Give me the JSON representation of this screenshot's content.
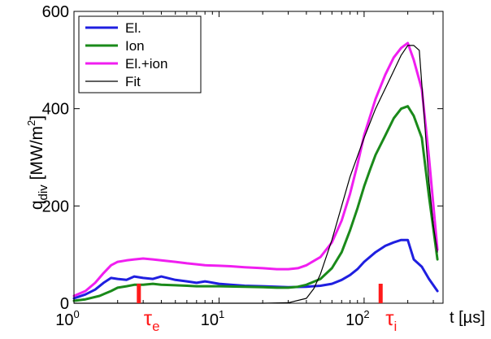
{
  "chart_data": {
    "type": "line",
    "xscale": "log",
    "xlim": [
      1,
      350
    ],
    "ylim": [
      0,
      600
    ],
    "ylabel_main": "q",
    "ylabel_sub": "div",
    "ylabel_units": "[MW/m",
    "ylabel_sup": "2",
    "ylabel_close": "]",
    "xlabel": "t [µs]",
    "xticks": [
      {
        "value": 1,
        "base": "10",
        "exp": "0"
      },
      {
        "value": 10,
        "base": "10",
        "exp": "1"
      },
      {
        "value": 100,
        "base": "10",
        "exp": "2"
      }
    ],
    "yticks": [
      {
        "value": 0,
        "label": "0"
      },
      {
        "value": 200,
        "label": "200"
      },
      {
        "value": 400,
        "label": "400"
      },
      {
        "value": 600,
        "label": "600"
      }
    ],
    "legend_position": "top-left",
    "series": [
      {
        "name": "El.",
        "color": "#1f1fe0",
        "width": 3,
        "x": [
          1,
          1.2,
          1.4,
          1.6,
          1.8,
          2.0,
          2.3,
          2.6,
          3,
          3.5,
          4,
          5,
          6,
          7,
          8,
          10,
          12,
          15,
          20,
          25,
          30,
          40,
          50,
          60,
          70,
          80,
          90,
          100,
          120,
          140,
          160,
          180,
          200,
          220,
          250,
          280,
          320
        ],
        "y": [
          10,
          18,
          28,
          42,
          52,
          50,
          48,
          55,
          52,
          50,
          55,
          48,
          45,
          42,
          45,
          40,
          38,
          36,
          35,
          34,
          33,
          34,
          36,
          40,
          48,
          58,
          70,
          85,
          105,
          118,
          125,
          130,
          130,
          90,
          75,
          50,
          25
        ]
      },
      {
        "name": "Ion",
        "color": "#1a8a1a",
        "width": 3,
        "x": [
          1,
          1.2,
          1.5,
          1.8,
          2.0,
          2.3,
          2.6,
          3,
          3.5,
          4,
          5,
          6,
          7,
          8,
          10,
          15,
          20,
          25,
          30,
          35,
          40,
          50,
          60,
          70,
          80,
          90,
          100,
          110,
          120,
          140,
          160,
          180,
          200,
          220,
          250,
          280,
          320
        ],
        "y": [
          5,
          8,
          15,
          25,
          32,
          35,
          38,
          38,
          40,
          38,
          37,
          36,
          35,
          35,
          35,
          34,
          33,
          32,
          32,
          34,
          38,
          50,
          72,
          105,
          150,
          195,
          240,
          275,
          305,
          345,
          380,
          400,
          405,
          385,
          340,
          220,
          90
        ]
      },
      {
        "name": "El.+ion",
        "color": "#f01ef0",
        "width": 3,
        "x": [
          1,
          1.2,
          1.4,
          1.6,
          1.8,
          2.0,
          2.3,
          2.6,
          3,
          3.5,
          4,
          5,
          6,
          7,
          8,
          10,
          12,
          15,
          20,
          25,
          30,
          35,
          40,
          50,
          60,
          70,
          80,
          90,
          100,
          120,
          140,
          160,
          180,
          200,
          220,
          250,
          280,
          320
        ],
        "y": [
          15,
          25,
          42,
          62,
          78,
          85,
          88,
          90,
          92,
          90,
          88,
          85,
          82,
          80,
          78,
          77,
          76,
          74,
          72,
          70,
          70,
          72,
          78,
          95,
          125,
          170,
          225,
          285,
          345,
          420,
          470,
          505,
          525,
          535,
          500,
          440,
          300,
          110
        ]
      },
      {
        "name": "Fit",
        "color": "#000000",
        "width": 1.2,
        "x": [
          1,
          5,
          10,
          20,
          30,
          40,
          45,
          50,
          60,
          70,
          80,
          100,
          120,
          150,
          180,
          200,
          220,
          240,
          260,
          280,
          300,
          320
        ],
        "y": [
          0,
          0,
          0,
          0,
          1,
          10,
          30,
          60,
          130,
          200,
          260,
          340,
          400,
          460,
          510,
          530,
          530,
          520,
          380,
          250,
          160,
          105
        ]
      }
    ],
    "annotations": [
      {
        "name": "tau-e",
        "x": 2.8,
        "base": "τ",
        "sub": "e",
        "color": "#ff1a1a"
      },
      {
        "name": "tau-i",
        "x": 130,
        "base": "τ",
        "sub": "i",
        "color": "#ff1a1a"
      }
    ]
  }
}
